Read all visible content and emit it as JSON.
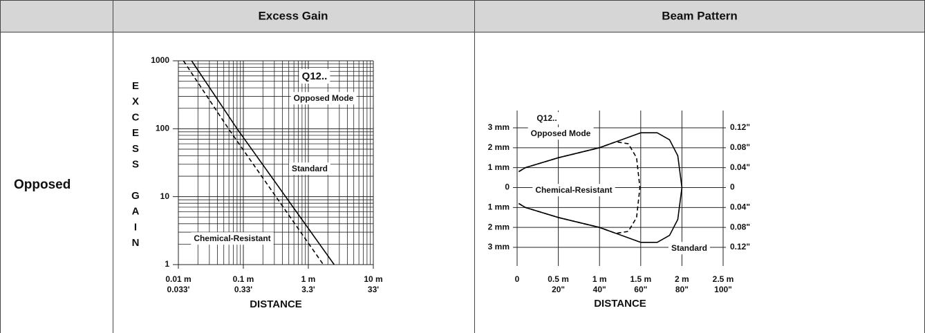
{
  "table": {
    "row_label": "Opposed"
  },
  "chart_data": [
    {
      "type": "line",
      "title": "Excess Gain",
      "xscale": "log",
      "yscale": "log",
      "xlim": [
        0.01,
        10
      ],
      "ylim": [
        1,
        1000
      ],
      "xticks": [
        {
          "value": 0.01,
          "label": "0.01 m"
        },
        {
          "value": 0.1,
          "label": "0.1 m"
        },
        {
          "value": 1,
          "label": "1 m"
        },
        {
          "value": 10,
          "label": "10 m"
        }
      ],
      "xticks_secondary": [
        {
          "value": 0.01,
          "label": "0.033'"
        },
        {
          "value": 0.1,
          "label": "0.33'"
        },
        {
          "value": 1,
          "label": "3.3'"
        },
        {
          "value": 10,
          "label": "33'"
        }
      ],
      "yticks": [
        1,
        10,
        100,
        1000
      ],
      "xlabel": "DISTANCE",
      "ylabel": "EXCESS GAIN",
      "grid": true,
      "minor_grid": true,
      "annotations": [
        "Q12..",
        "Opposed Mode"
      ],
      "series": [
        {
          "name": "Standard",
          "color": "#000000",
          "linestyle": "solid",
          "x": [
            0.016,
            0.08,
            2.5
          ],
          "y": [
            1000,
            100,
            1
          ]
        },
        {
          "name": "Chemical-Resistant",
          "color": "#000000",
          "linestyle": "dashed",
          "x": [
            0.012,
            0.059,
            1.7
          ],
          "y": [
            1000,
            100,
            1
          ]
        }
      ]
    },
    {
      "type": "line",
      "title": "Beam Pattern",
      "xlim": [
        0,
        2.5
      ],
      "ylim": [
        -3,
        3
      ],
      "y2lim": [
        -0.12,
        0.12
      ],
      "xticks": [
        0,
        {
          "value": 0.5,
          "label": "0.5 m"
        },
        {
          "value": 1,
          "label": "1 m"
        },
        {
          "value": 1.5,
          "label": "1.5 m"
        },
        {
          "value": 2,
          "label": "2 m"
        },
        {
          "value": 2.5,
          "label": "2.5 m"
        }
      ],
      "xticks_secondary": [
        {
          "value": 0.5,
          "label": "20\""
        },
        {
          "value": 1,
          "label": "40\""
        },
        {
          "value": 1.5,
          "label": "60\""
        },
        {
          "value": 2,
          "label": "80\""
        },
        {
          "value": 2.5,
          "label": "100\""
        }
      ],
      "yticks": [
        {
          "value": 3,
          "label": "3 mm"
        },
        {
          "value": 2,
          "label": "2 mm"
        },
        {
          "value": 1,
          "label": "1 mm"
        },
        0,
        {
          "value": -1,
          "label": "1 mm"
        },
        {
          "value": -2,
          "label": "2 mm"
        },
        {
          "value": -3,
          "label": "3 mm"
        }
      ],
      "y2ticks": [
        {
          "value": 0.12,
          "label": "0.12\""
        },
        {
          "value": 0.08,
          "label": "0.08\""
        },
        {
          "value": 0.04,
          "label": "0.04\""
        },
        0,
        {
          "value": -0.04,
          "label": "0.04\""
        },
        {
          "value": -0.08,
          "label": "0.08\""
        },
        {
          "value": -0.12,
          "label": "0.12\""
        }
      ],
      "xlabel": "DISTANCE",
      "grid": true,
      "annotations": [
        "Q12..",
        "Opposed Mode"
      ],
      "series": [
        {
          "name": "Standard",
          "color": "#000000",
          "linestyle": "solid",
          "x": [
            0.02,
            0.1,
            0.5,
            1.0,
            1.3,
            1.5,
            1.7,
            1.85,
            1.95,
            2.0,
            1.95,
            1.85,
            1.7,
            1.5,
            1.3,
            1.0,
            0.5,
            0.1,
            0.02
          ],
          "y": [
            0.8,
            1.0,
            1.5,
            2.0,
            2.45,
            2.75,
            2.75,
            2.4,
            1.6,
            0,
            -1.6,
            -2.4,
            -2.75,
            -2.75,
            -2.45,
            -2.0,
            -1.5,
            -1.0,
            -0.8
          ]
        },
        {
          "name": "Chemical-Resistant",
          "color": "#000000",
          "linestyle": "dashed",
          "x": [
            0.02,
            0.1,
            0.5,
            1.0,
            1.2,
            1.35,
            1.45,
            1.49,
            1.45,
            1.35,
            1.2,
            1.0,
            0.5,
            0.1,
            0.02
          ],
          "y": [
            0.8,
            1.0,
            1.5,
            2.0,
            2.3,
            2.2,
            1.5,
            0,
            -1.5,
            -2.2,
            -2.3,
            -2.0,
            -1.5,
            -1.0,
            -0.8
          ]
        }
      ]
    }
  ]
}
